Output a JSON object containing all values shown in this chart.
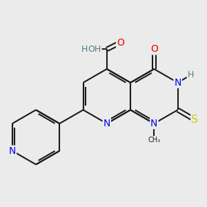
{
  "background_color": "#ebebeb",
  "atom_colors": {
    "C": "#1a1a1a",
    "N": "#0000ee",
    "O": "#ee0000",
    "S": "#cccc00",
    "H": "#4a8080"
  },
  "bond_color": "#1a1a1a",
  "bond_width": 1.5,
  "figsize": [
    3.0,
    3.0
  ],
  "dpi": 100
}
